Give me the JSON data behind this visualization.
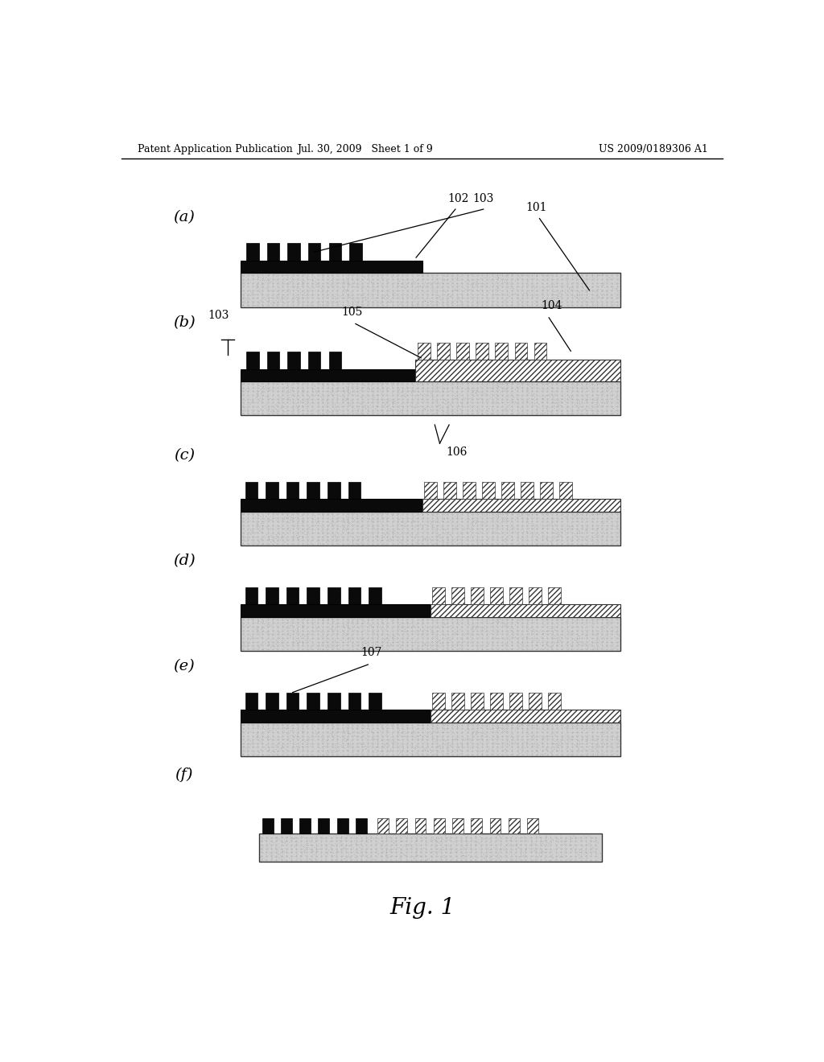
{
  "bg_color": "#ffffff",
  "header_left": "Patent Application Publication",
  "header_center": "Jul. 30, 2009   Sheet 1 of 9",
  "header_right": "US 2009/0189306 A1",
  "fig_label": "Fig. 1",
  "substrate_color": "#c8c8c8",
  "substrate_edge": "#444444",
  "black_color": "#111111",
  "hatch_color": "#888888",
  "panel_labels": [
    "(a)",
    "(b)",
    "(c)",
    "(d)",
    "(e)",
    "(f)"
  ]
}
